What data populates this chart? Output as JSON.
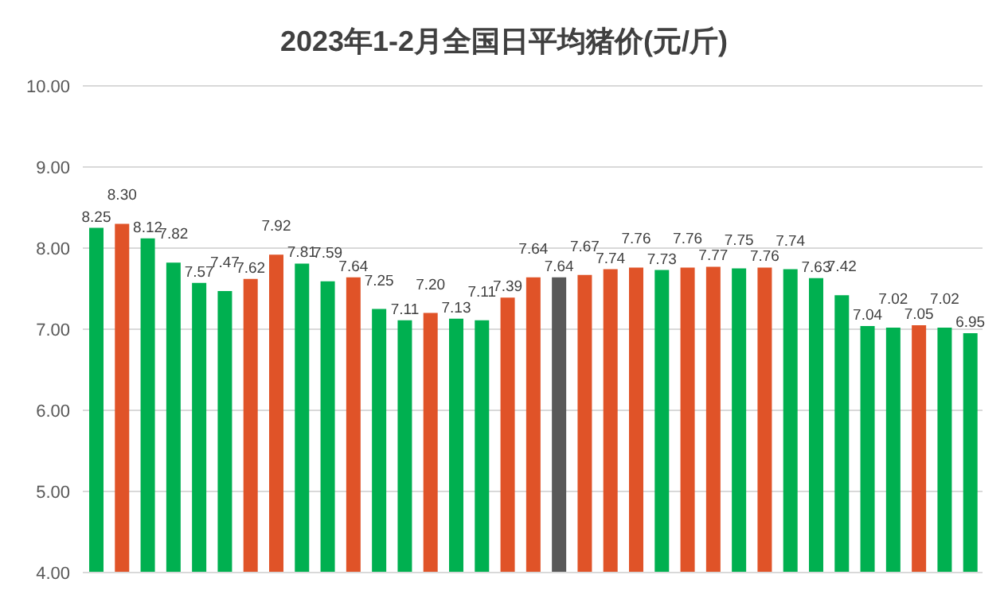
{
  "chart_data": {
    "type": "bar",
    "title": "2023年1-2月全国日平均猪价(元/斤)",
    "categories": [
      null,
      null,
      null,
      null,
      null,
      null,
      null,
      null,
      null,
      null,
      null,
      null,
      null,
      null,
      null,
      null,
      null,
      null,
      null,
      null,
      null,
      null,
      null,
      null,
      null,
      null,
      null,
      null,
      null,
      null,
      null,
      null,
      null,
      null,
      null
    ],
    "values": [
      8.25,
      8.3,
      8.12,
      7.82,
      7.57,
      7.47,
      7.62,
      7.92,
      7.81,
      7.59,
      7.64,
      7.25,
      7.11,
      7.2,
      7.13,
      7.11,
      7.39,
      7.64,
      7.64,
      7.67,
      7.74,
      7.76,
      7.73,
      7.76,
      7.77,
      7.75,
      7.76,
      7.74,
      7.63,
      7.42,
      7.04,
      7.02,
      7.05,
      7.02,
      6.95
    ],
    "colors": [
      "#00b050",
      "#e05328",
      "#00b050",
      "#00b050",
      "#00b050",
      "#00b050",
      "#e05328",
      "#e05328",
      "#00b050",
      "#00b050",
      "#e05328",
      "#00b050",
      "#00b050",
      "#e05328",
      "#00b050",
      "#00b050",
      "#e05328",
      "#e05328",
      "#595959",
      "#e05328",
      "#e05328",
      "#e05328",
      "#00b050",
      "#e05328",
      "#e05328",
      "#00b050",
      "#e05328",
      "#00b050",
      "#00b050",
      "#00b050",
      "#00b050",
      "#00b050",
      "#e05328",
      "#00b050",
      "#00b050"
    ],
    "ylim": [
      4,
      10
    ],
    "yticks": [
      {
        "value": 4,
        "label": "4.00"
      },
      {
        "value": 5,
        "label": "5.00"
      },
      {
        "value": 6,
        "label": "6.00"
      },
      {
        "value": 7,
        "label": "7.00"
      },
      {
        "value": 8,
        "label": "8.00"
      },
      {
        "value": 9,
        "label": "9.00"
      },
      {
        "value": 10,
        "label": "10.00"
      }
    ],
    "value_labels": [
      "8.25",
      "8.30",
      "8.12",
      "7.82",
      "7.57",
      "7.47",
      "7.62",
      "7.92",
      "7.81",
      "7.59",
      "7.64",
      "7.25",
      "7.11",
      "7.20",
      "7.13",
      "7.11",
      "7.39",
      "7.64",
      "7.64",
      "7.67",
      "7.74",
      "7.76",
      "7.73",
      "7.76",
      "7.77",
      "7.75",
      "7.76",
      "7.74",
      "7.63",
      "7.42",
      "7.04",
      "7.02",
      "7.05",
      "7.02",
      "6.95"
    ],
    "grid": "y"
  }
}
